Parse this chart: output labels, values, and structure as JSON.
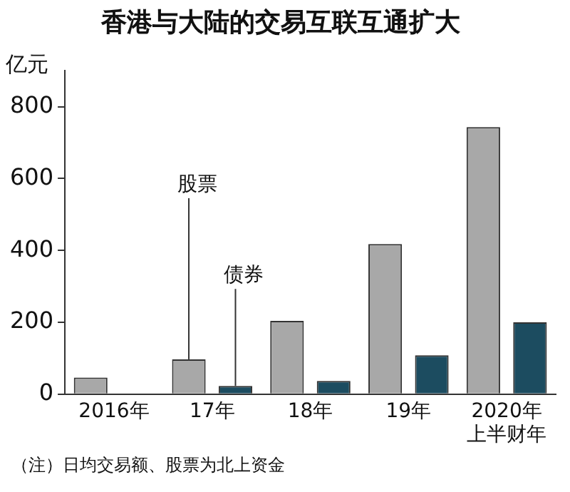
{
  "chart_data": {
    "type": "bar",
    "title": "香港与大陆的交易互联互通扩大",
    "ylabel": "亿元",
    "categories": [
      "2016年",
      "17年",
      "18年",
      "19年",
      "2020年上半财年"
    ],
    "series": [
      {
        "name": "股票",
        "color": "#a8a8a8",
        "values": [
          46,
          97,
          204,
          418,
          743
        ]
      },
      {
        "name": "债券",
        "color": "#1c4c60",
        "values": [
          null,
          23,
          37,
          108,
          200
        ]
      }
    ],
    "ylim": [
      0,
      900
    ],
    "yticks": [
      0,
      200,
      400,
      600,
      800
    ],
    "grid": false,
    "legend": false,
    "annotations": [
      "（注）日均交易额、股票为北上资金"
    ]
  }
}
